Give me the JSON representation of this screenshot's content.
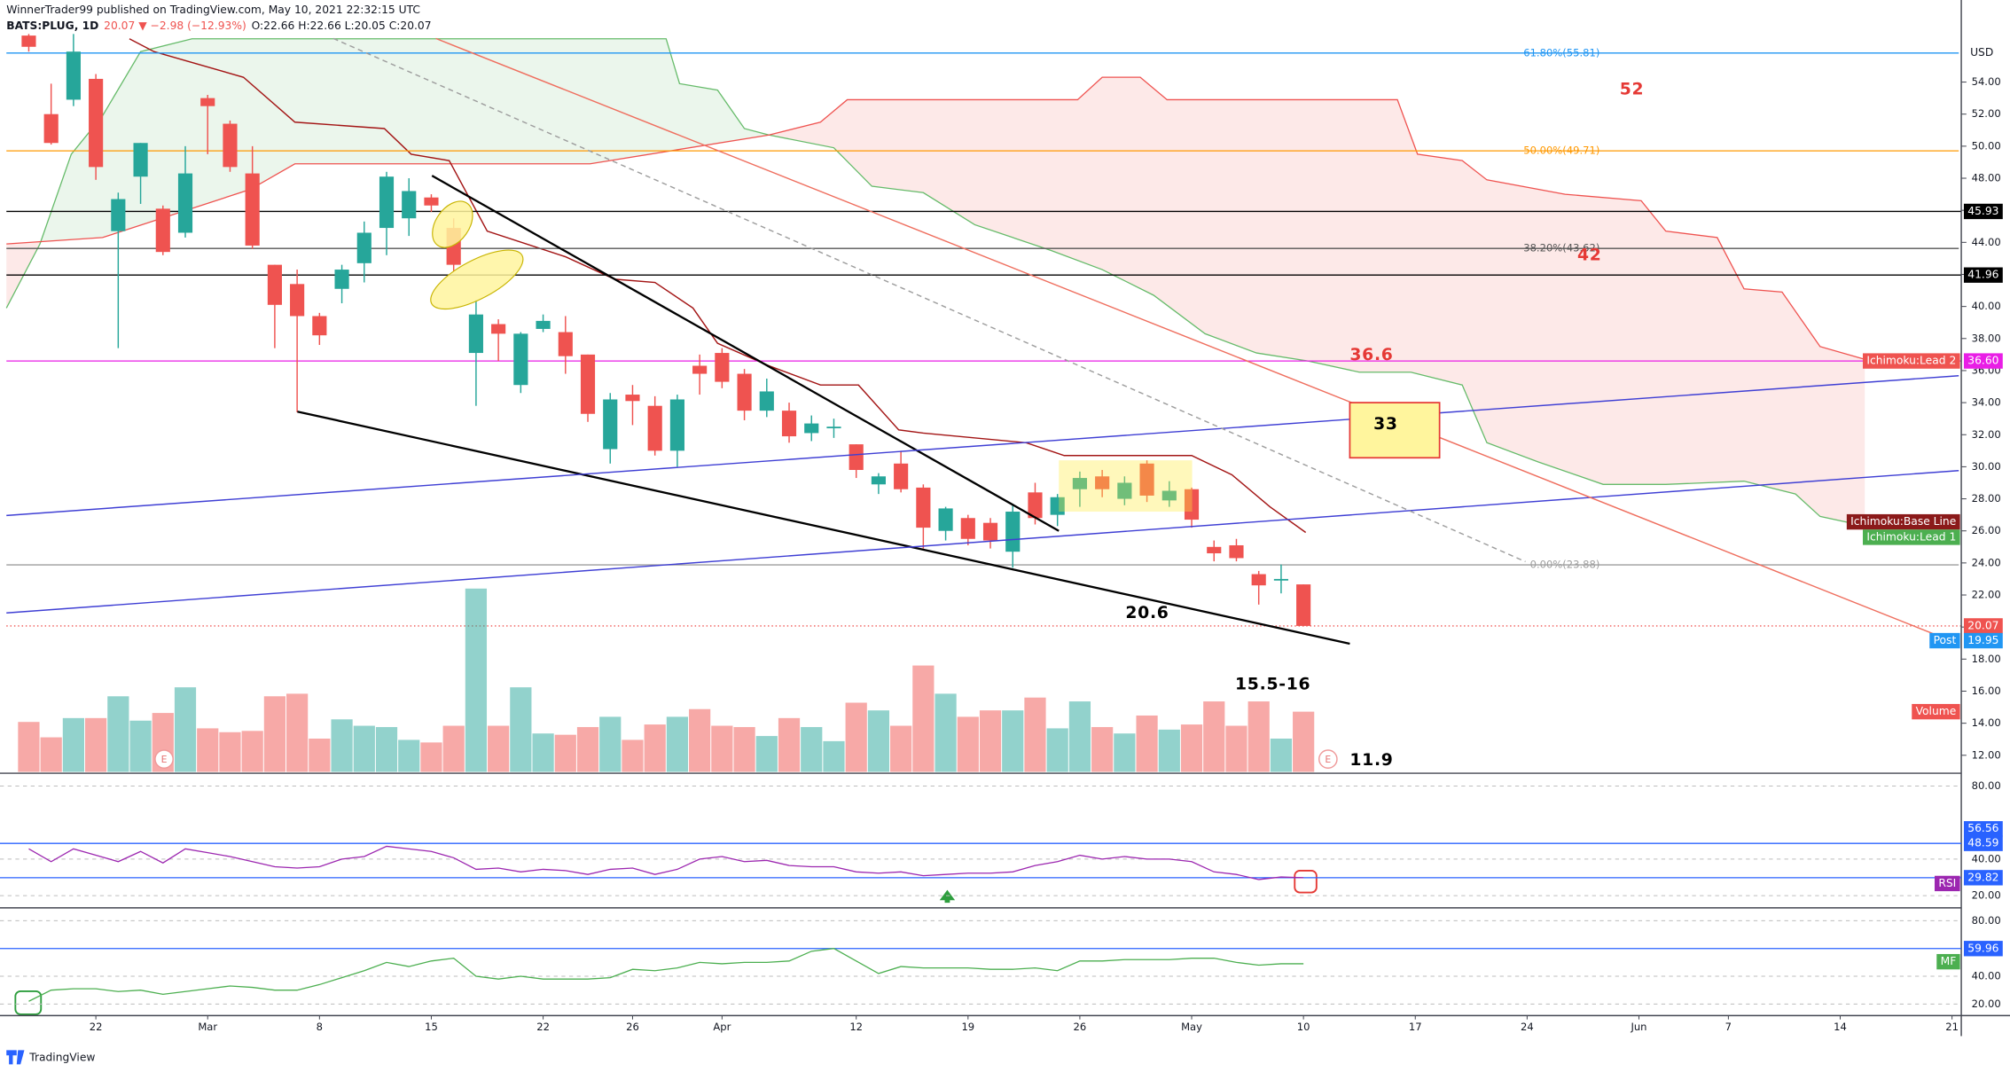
{
  "header": {
    "title": "WinnerTrader99 published on TradingView.com, May 10, 2021 22:32:15 UTC",
    "symbol": "BATS:PLUG, 1D",
    "change": "20.07 ▼ −2.98 (−12.93%)",
    "ohlc": "O:22.66 H:22.66 L:20.05 C:20.07"
  },
  "footer": "TradingView",
  "chart_data": {
    "type": "candlestick",
    "currency": "USD",
    "up_color": "#26a69a",
    "down_color": "#ef5350",
    "open": [
      56.9,
      52,
      52.9,
      54.2,
      44.7,
      48.1,
      46.1,
      44.6,
      53,
      51.4,
      48.3,
      42.6,
      41.4,
      39.4,
      41.1,
      42.7,
      44.9,
      45.5,
      46.8,
      44.9,
      37.1,
      38.9,
      35.1,
      38.6,
      38.4,
      37,
      31.1,
      34.5,
      33.8,
      31,
      36.3,
      37.1,
      35.8,
      33.5,
      33.5,
      32.1,
      32.4,
      31.4,
      28.9,
      30.2,
      28.7,
      26,
      26.8,
      26.5,
      24.7,
      28.4,
      27,
      28.6,
      29.4,
      28,
      30.2,
      27.9,
      28.6,
      25,
      25.1,
      23.3,
      22.9,
      22.66
    ],
    "high": [
      57,
      53.9,
      57,
      54.5,
      47.1,
      50.2,
      46.3,
      50,
      53.2,
      51.6,
      50,
      42.6,
      42.3,
      39.6,
      42.6,
      45.3,
      48.4,
      48,
      47,
      45.5,
      40.4,
      39.2,
      38.4,
      39.5,
      39.4,
      37,
      34.6,
      35.1,
      34.4,
      34.5,
      37,
      37.4,
      36.1,
      35.5,
      34,
      33.2,
      33,
      31.4,
      29.6,
      31,
      28.9,
      27.5,
      27,
      26.8,
      27.6,
      29,
      28.3,
      29.7,
      29.8,
      29.4,
      30.4,
      29.1,
      28.7,
      25.4,
      25.5,
      23.5,
      23.9,
      22.66
    ],
    "low": [
      55.9,
      50.1,
      52.5,
      47.9,
      37.4,
      46.4,
      43.2,
      44.3,
      49.5,
      48.4,
      43.6,
      37.4,
      33.4,
      37.6,
      40.2,
      41.5,
      43.2,
      44.4,
      45.9,
      42.2,
      33.8,
      36.6,
      34.6,
      38.4,
      35.8,
      32.8,
      30.2,
      32.6,
      30.7,
      30,
      34.5,
      34.9,
      32.9,
      33.1,
      31.5,
      31.6,
      31.8,
      29.3,
      28.3,
      28.4,
      24.9,
      25.4,
      25.1,
      24.9,
      23.7,
      26.4,
      26.3,
      27.5,
      28.1,
      27.6,
      27.8,
      27.5,
      26.2,
      24.1,
      24.1,
      21.4,
      22.1,
      20.05
    ],
    "close": [
      56.2,
      50.2,
      55.9,
      48.7,
      46.7,
      50.2,
      43.4,
      48.3,
      52.5,
      48.7,
      43.8,
      40.1,
      39.4,
      38.2,
      42.3,
      44.6,
      48.1,
      47.2,
      46.3,
      42.6,
      39.5,
      38.3,
      38.3,
      39.1,
      36.9,
      33.3,
      34.2,
      34.1,
      31,
      34.2,
      35.8,
      35.3,
      33.5,
      34.7,
      31.9,
      32.7,
      32.5,
      29.8,
      29.4,
      28.6,
      26.2,
      27.4,
      25.5,
      25.4,
      27.2,
      26.8,
      28.1,
      29.3,
      28.6,
      29,
      28.2,
      28.5,
      26.7,
      24.6,
      24.3,
      22.6,
      23,
      20.07
    ],
    "xlim": [
      -1,
      86.3
    ],
    "xticks": [
      {
        "value": 3,
        "label": "22"
      },
      {
        "value": 8,
        "label": "Mar"
      },
      {
        "value": 13,
        "label": "8"
      },
      {
        "value": 18,
        "label": "15"
      },
      {
        "value": 23,
        "label": "22"
      },
      {
        "value": 27,
        "label": "26"
      },
      {
        "value": 31,
        "label": "Apr"
      },
      {
        "value": 37,
        "label": "12"
      },
      {
        "value": 42,
        "label": "19"
      },
      {
        "value": 47,
        "label": "26"
      },
      {
        "value": 52,
        "label": "May"
      },
      {
        "value": 57,
        "label": "10"
      },
      {
        "value": 62,
        "label": "17"
      },
      {
        "value": 67,
        "label": "24"
      },
      {
        "value": 72,
        "label": "Jun"
      },
      {
        "value": 76,
        "label": "7"
      },
      {
        "value": 81,
        "label": "14"
      },
      {
        "value": 86,
        "label": "21"
      }
    ],
    "ylim": [
      10.96,
      59.12
    ],
    "yticks": [
      {
        "value": 12,
        "label": "12.00"
      },
      {
        "value": 14,
        "label": "14.00"
      },
      {
        "value": 16,
        "label": "16.00"
      },
      {
        "value": 18,
        "label": "18.00"
      },
      {
        "value": 20,
        "label": "20.00"
      },
      {
        "value": 22,
        "label": "22.00"
      },
      {
        "value": 24,
        "label": "24.00"
      },
      {
        "value": 26,
        "label": "26.00"
      },
      {
        "value": 28,
        "label": "28.00"
      },
      {
        "value": 30,
        "label": "30.00"
      },
      {
        "value": 32,
        "label": "32.00"
      },
      {
        "value": 34,
        "label": "34.00"
      },
      {
        "value": 36,
        "label": "36.00"
      },
      {
        "value": 38,
        "label": "38.00"
      },
      {
        "value": 40,
        "label": "40.00"
      },
      {
        "value": 42,
        "label": "42.00"
      },
      {
        "value": 44,
        "label": "44.00"
      },
      {
        "value": 46,
        "label": "46.00"
      },
      {
        "value": 48,
        "label": "48.00"
      },
      {
        "value": 50,
        "label": "50.00"
      },
      {
        "value": 52,
        "label": "52.00"
      },
      {
        "value": 54,
        "label": "54.00"
      }
    ],
    "fib_levels": [
      {
        "value": 55.81,
        "label": "61.80%(55.81)",
        "color": "#2196f3"
      },
      {
        "value": 49.71,
        "label": "50.00%(49.71)",
        "color": "#ff9800"
      },
      {
        "value": 43.62,
        "label": "38.20%(43.62)",
        "color": "#555555"
      },
      {
        "value": 23.88,
        "label": "0.00%(23.88)",
        "color": "#9e9e9e"
      }
    ],
    "price_lines": [
      {
        "value": 45.93,
        "label": "45.93",
        "color": "#000000",
        "line": "solid"
      },
      {
        "value": 41.96,
        "label": "41.96",
        "color": "#000000",
        "line": "solid"
      },
      {
        "value": 36.6,
        "label": "36.60",
        "color": "#e91ee6",
        "line": "solid"
      },
      {
        "value": 20.07,
        "label": "20.07",
        "color": "#ef5350",
        "line": "dotted"
      },
      {
        "value": 19.95,
        "label": "19.95",
        "color": "#2196f3",
        "tag": "Post"
      }
    ],
    "ichimoku": {
      "lead1": {
        "color": "#66bb6a",
        "x": [
          -1,
          0.5,
          1.9,
          3.3,
          5,
          7.3,
          28.5,
          29.1,
          30.8,
          32,
          33.1,
          36,
          37.7,
          40,
          42.3,
          45.7,
          48,
          50.3,
          52.6,
          54.9,
          57.2,
          59.5,
          61.8,
          64.1,
          65.2,
          67.5,
          70.4,
          73.2,
          76.7,
          79,
          80.1,
          82.1
        ],
        "values": [
          39.9,
          43.9,
          49.5,
          51.9,
          55.9,
          56.7,
          56.7,
          53.9,
          53.5,
          51.1,
          50.7,
          49.9,
          47.5,
          47.1,
          45.1,
          43.5,
          42.3,
          40.7,
          38.3,
          37.1,
          36.6,
          35.9,
          35.9,
          35.1,
          31.5,
          30.3,
          28.9,
          28.9,
          29.1,
          28.3,
          26.9,
          26.3
        ]
      },
      "lead2": {
        "color": "#ef5350",
        "x": [
          -1,
          3.3,
          9.9,
          11.9,
          25.1,
          33.1,
          35.4,
          36.6,
          46.9,
          48,
          49.7,
          50.9,
          61.2,
          62.1,
          64.1,
          65.2,
          68.7,
          72.1,
          73.2,
          75.5,
          76.7,
          78.4,
          80.1,
          82.1
        ],
        "values": [
          43.9,
          44.3,
          47.3,
          48.9,
          48.9,
          50.7,
          51.5,
          52.9,
          52.9,
          54.3,
          54.3,
          52.9,
          52.9,
          49.5,
          49.1,
          47.9,
          47,
          46.6,
          44.7,
          44.3,
          41.1,
          40.9,
          37.5,
          36.7
        ]
      },
      "base": {
        "color": "#a31515",
        "x": [
          4.5,
          5.6,
          9.6,
          11.9,
          15.9,
          17.1,
          18.8,
          20.5,
          24,
          26.2,
          28,
          29.7,
          30.8,
          33.1,
          35.4,
          37.1,
          38.9,
          40,
          44.6,
          46.3,
          52,
          53.8,
          55.5,
          57.1
        ],
        "values": [
          56.7,
          55.9,
          54.3,
          51.5,
          51.1,
          49.5,
          49.1,
          44.7,
          43.1,
          41.7,
          41.5,
          39.9,
          37.7,
          36.3,
          35.1,
          35.1,
          32.3,
          32.1,
          31.5,
          30.7,
          30.7,
          29.5,
          27.5,
          25.9
        ]
      }
    },
    "line_tags": [
      {
        "label": "Ichimoku:Lead 2",
        "value": 36.6,
        "color": "#ef5350"
      },
      {
        "label": "Ichimoku:Base Line",
        "value": 26.56,
        "color": "#8b1a1a"
      },
      {
        "label": "Ichimoku:Lead 1",
        "value": 25.6,
        "color": "#4caf50"
      }
    ],
    "volume": {
      "name": "Volume",
      "color": "#ef5350",
      "values": [
        39,
        27,
        42,
        42,
        59,
        40,
        46,
        66,
        34,
        31,
        32,
        59,
        61,
        26,
        41,
        36,
        35,
        25,
        23,
        36,
        143,
        36,
        66,
        30,
        29,
        35,
        43,
        25,
        37,
        43,
        49,
        36,
        35,
        28,
        42,
        35,
        24,
        54,
        48,
        36,
        83,
        61,
        43,
        48,
        48,
        58,
        34,
        55,
        35,
        30,
        44,
        33,
        37,
        55,
        36,
        55,
        26,
        47
      ]
    },
    "rsi": {
      "name": "RSI",
      "color": "#9c27b0",
      "level_color": "#2962ff",
      "ylim": [
        14,
        86.3
      ],
      "yticks": [
        {
          "value": 80,
          "label": "80.00"
        },
        {
          "value": 40,
          "label": "40.00"
        },
        {
          "value": 20,
          "label": "20.00"
        }
      ],
      "levels": [
        {
          "value": 56.56,
          "label": "56.56"
        },
        {
          "value": 48.59,
          "label": "48.59",
          "line": true
        },
        {
          "value": 29.82,
          "label": "29.82",
          "line": true
        }
      ],
      "values": [
        45.6,
        38.6,
        45.6,
        42.1,
        38.6,
        44.2,
        37.9,
        45.6,
        43.5,
        41.4,
        38.6,
        35.8,
        35.1,
        35.8,
        40,
        41.4,
        47,
        45.6,
        44.2,
        40.7,
        34.4,
        35.1,
        33,
        34.4,
        33.7,
        31.6,
        34.4,
        35.1,
        31.6,
        34.4,
        40,
        41.4,
        38.6,
        39.3,
        36.5,
        35.8,
        35.8,
        33,
        32.3,
        33,
        30.9,
        31.6,
        32.3,
        32.3,
        33,
        36.5,
        38.6,
        42.1,
        40,
        41.4,
        40,
        40,
        38.6,
        33,
        31.6,
        28.8,
        30.2,
        29.82
      ]
    },
    "mf": {
      "name": "MF",
      "color": "#4caf50",
      "level_color": "#2962ff",
      "ylim": [
        11.7,
        87.4
      ],
      "yticks": [
        {
          "value": 80,
          "label": "80.00"
        },
        {
          "value": 40,
          "label": "40.00"
        },
        {
          "value": 20,
          "label": "20.00"
        }
      ],
      "levels": [
        {
          "value": 59.96,
          "label": "59.96",
          "line": true
        }
      ],
      "values": [
        22,
        30,
        31,
        31,
        29,
        30,
        27,
        29,
        31,
        33,
        32,
        30,
        30,
        34,
        39,
        44,
        50,
        47,
        51,
        53,
        40,
        38,
        40,
        38,
        38,
        38,
        39,
        45,
        44,
        46,
        50,
        49,
        50,
        50,
        51,
        58,
        60,
        51,
        42,
        47,
        46,
        46,
        46,
        45,
        45,
        46,
        44,
        51,
        51,
        52,
        52,
        52,
        53,
        53,
        50,
        48,
        49,
        49
      ]
    },
    "annotations": [
      "52",
      "42",
      "36.6",
      "33",
      "20.6",
      "15.5-16",
      "11.9"
    ],
    "earnings_marker": "E"
  }
}
